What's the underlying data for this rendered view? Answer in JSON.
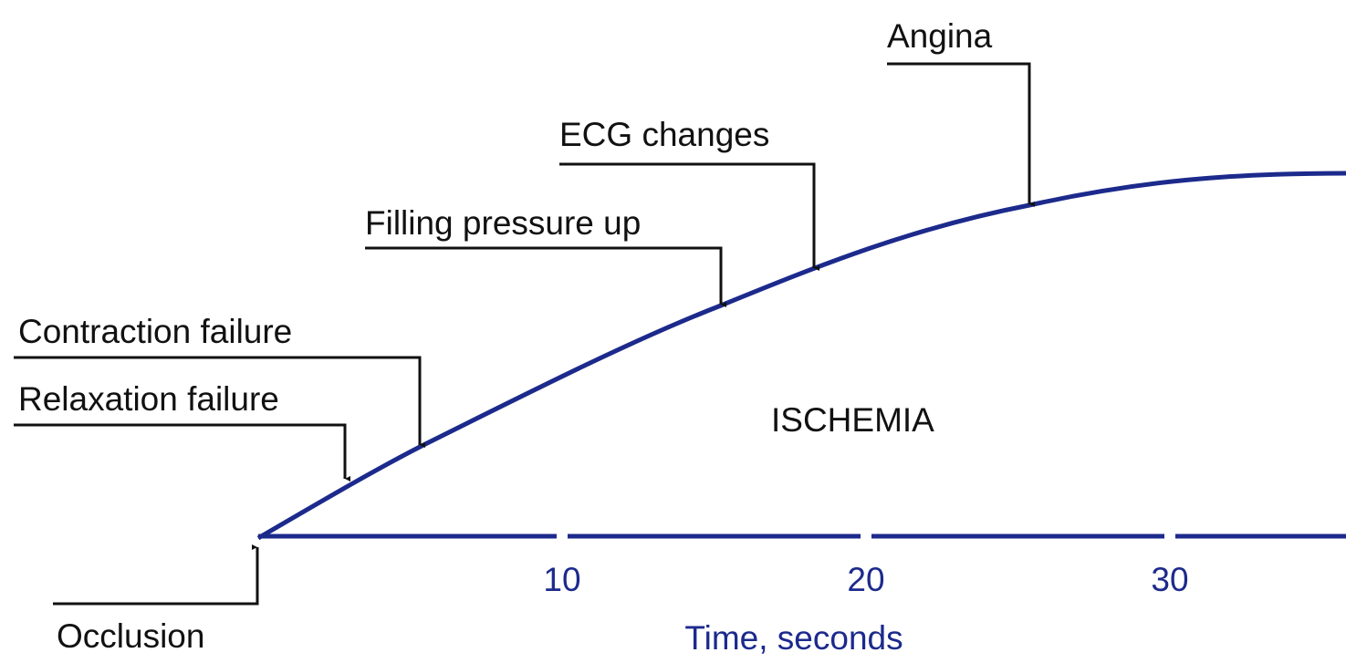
{
  "events": [
    {
      "label": "Occlusion"
    },
    {
      "label": "Relaxation failure"
    },
    {
      "label": "Contraction failure"
    },
    {
      "label": "Filling pressure up"
    },
    {
      "label": "ECG changes"
    },
    {
      "label": "Angina"
    }
  ],
  "region_label": "ISCHEMIA",
  "axis": {
    "label": "Time, seconds",
    "ticks": [
      10,
      20,
      30
    ]
  }
}
